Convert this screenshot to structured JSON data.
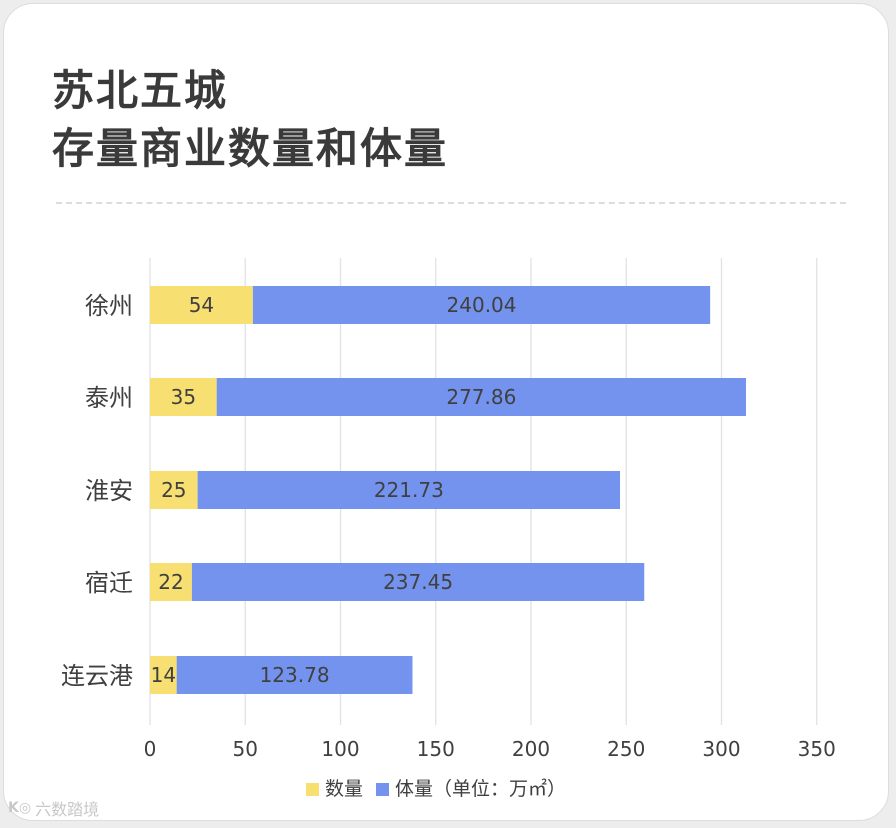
{
  "title_line1": "苏北五城",
  "title_line2": "存量商业数量和体量",
  "watermark": "六数踏境",
  "colors": {
    "count": "#f7df72",
    "volume": "#7393ee",
    "grid": "#e2e2e2",
    "text": "#404040"
  },
  "chart_data": {
    "type": "bar",
    "orientation": "horizontal",
    "stacked": true,
    "categories": [
      "徐州",
      "泰州",
      "淮安",
      "宿迁",
      "连云港"
    ],
    "series": [
      {
        "name": "数量",
        "values": [
          54,
          35,
          25,
          22,
          14
        ]
      },
      {
        "name": "体量（单位：万㎡）",
        "values": [
          240.04,
          277.86,
          221.73,
          237.45,
          123.78
        ]
      }
    ],
    "xlim": [
      0,
      350
    ],
    "xticks": [
      0,
      50,
      100,
      150,
      200,
      250,
      300,
      350
    ],
    "grid": true,
    "legend_position": "bottom"
  }
}
